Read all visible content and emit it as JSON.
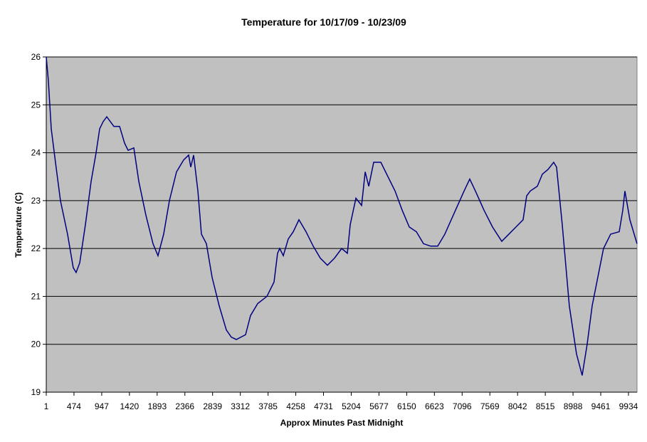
{
  "chart_data": {
    "type": "line",
    "title": "Temperature for 10/17/09 - 10/23/09",
    "x_label": "Approx Minutes Past Midnight",
    "y_label": "Temperature (C)",
    "x": [
      1,
      37,
      86,
      158,
      243,
      364,
      461,
      510,
      572,
      669,
      766,
      851,
      912,
      972,
      1033,
      1155,
      1252,
      1337,
      1397,
      1495,
      1580,
      1700,
      1822,
      1907,
      2004,
      2102,
      2223,
      2345,
      2430,
      2466,
      2515,
      2588,
      2648,
      2733,
      2830,
      2952,
      3073,
      3158,
      3243,
      3401,
      3486,
      3608,
      3765,
      3887,
      3947,
      3984,
      4045,
      4130,
      4215,
      4312,
      4433,
      4555,
      4676,
      4798,
      4919,
      5041,
      5138,
      5187,
      5284,
      5381,
      5442,
      5503,
      5587,
      5709,
      5830,
      5952,
      6073,
      6194,
      6316,
      6437,
      6558,
      6680,
      6801,
      6983,
      7129,
      7226,
      7323,
      7469,
      7614,
      7772,
      7894,
      8015,
      8136,
      8197,
      8258,
      8379,
      8464,
      8561,
      8658,
      8707,
      8804,
      8925,
      9047,
      9144,
      9229,
      9314,
      9411,
      9508,
      9630,
      9776,
      9837,
      9873,
      9958,
      10080
    ],
    "series": [
      {
        "name": "Temperature",
        "color": "#000080",
        "values": [
          26.0,
          25.5,
          24.5,
          23.8,
          23.0,
          22.3,
          21.6,
          21.5,
          21.7,
          22.5,
          23.4,
          24.0,
          24.5,
          24.65,
          24.75,
          24.55,
          24.55,
          24.2,
          24.05,
          24.1,
          23.4,
          22.7,
          22.1,
          21.85,
          22.3,
          23.0,
          23.6,
          23.85,
          23.95,
          23.7,
          23.95,
          23.2,
          22.3,
          22.1,
          21.4,
          20.8,
          20.3,
          20.15,
          20.1,
          20.2,
          20.6,
          20.85,
          21.0,
          21.3,
          21.9,
          22.0,
          21.85,
          22.2,
          22.35,
          22.6,
          22.35,
          22.05,
          21.8,
          21.65,
          21.8,
          22.0,
          21.9,
          22.5,
          23.05,
          22.9,
          23.6,
          23.3,
          23.8,
          23.8,
          23.5,
          23.2,
          22.8,
          22.45,
          22.35,
          22.1,
          22.05,
          22.05,
          22.3,
          22.8,
          23.2,
          23.45,
          23.2,
          22.8,
          22.45,
          22.15,
          22.3,
          22.45,
          22.6,
          23.1,
          23.2,
          23.3,
          23.55,
          23.65,
          23.8,
          23.7,
          22.5,
          20.8,
          19.8,
          19.35,
          20.0,
          20.8,
          21.4,
          22.0,
          22.3,
          22.35,
          22.8,
          23.2,
          22.6,
          22.1
        ]
      }
    ],
    "xlim": [
      1,
      10080
    ],
    "xticks": [
      1,
      474,
      947,
      1420,
      1893,
      2366,
      2839,
      3312,
      3785,
      4258,
      4731,
      5204,
      5677,
      6150,
      6623,
      7096,
      7569,
      8042,
      8515,
      8988,
      9461,
      9934
    ],
    "ylim": [
      19,
      26
    ],
    "yticks": [
      19,
      20,
      21,
      22,
      23,
      24,
      25,
      26
    ],
    "grid": true,
    "background": "#c0c0c0"
  }
}
